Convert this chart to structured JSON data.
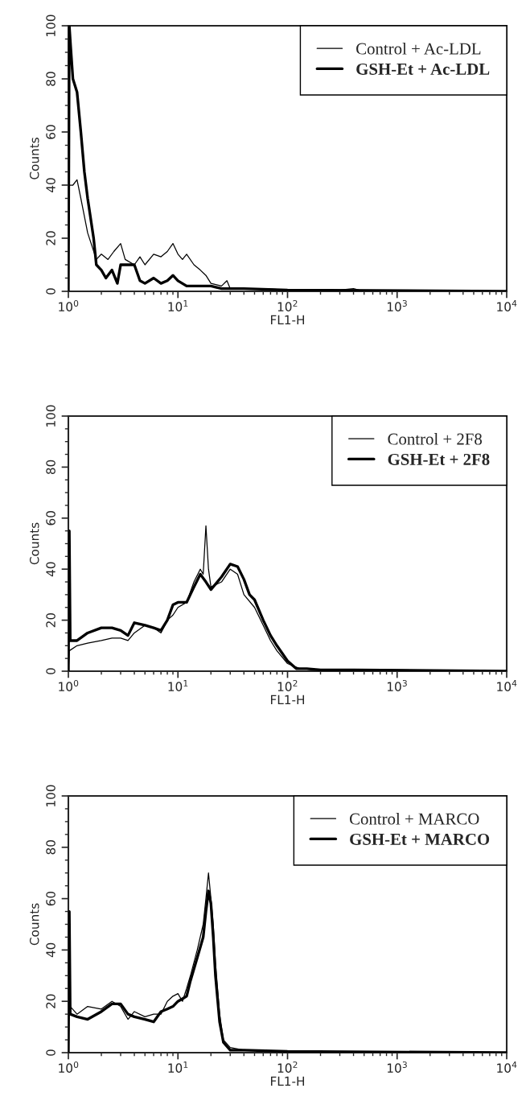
{
  "chart_data": [
    {
      "type": "line",
      "xlabel": "FL1-H",
      "ylabel": "Counts",
      "log": "x",
      "legend": "top right",
      "xlim": [
        1,
        10000
      ],
      "ylim": [
        0,
        100
      ],
      "xticks": [
        {
          "value": 1,
          "label": "10$^{0}$"
        },
        {
          "value": 10,
          "label": "10$^{1}$"
        },
        {
          "value": 100,
          "label": "10$^{2}$"
        },
        {
          "value": 1000,
          "label": "10$^{3}$"
        },
        {
          "value": 10000,
          "label": "10$^{4}$"
        }
      ],
      "yticks": [
        0,
        20,
        40,
        60,
        80,
        100
      ],
      "series": [
        {
          "name": "Control + Ac-LDL",
          "color": "#000000",
          "x": [
            1.0,
            1.02,
            1.1,
            1.2,
            1.3,
            1.5,
            1.8,
            2.0,
            2.3,
            2.6,
            3.0,
            3.3,
            4,
            4.5,
            5,
            6,
            7,
            8,
            9,
            10,
            11,
            12,
            14,
            16,
            18,
            20,
            25,
            28,
            30,
            40,
            60,
            100,
            200,
            300,
            400,
            500,
            10000
          ],
          "values": [
            0,
            40,
            40,
            42,
            35,
            22,
            12,
            14,
            12,
            15,
            18,
            12,
            10,
            13,
            10,
            14,
            13,
            15,
            18,
            14,
            12,
            14,
            10,
            8,
            6,
            3,
            2,
            4,
            1,
            1,
            1,
            0.5,
            0.5,
            0.5,
            1,
            0,
            0
          ]
        },
        {
          "name": "GSH-Et + Ac-LDL",
          "color": "#000000",
          "x": [
            1.0,
            1.02,
            1.05,
            1.1,
            1.2,
            1.3,
            1.4,
            1.5,
            1.7,
            1.8,
            2.0,
            2.2,
            2.5,
            2.8,
            3,
            3.5,
            4,
            4.5,
            5,
            6,
            7,
            8,
            9,
            10,
            12,
            15,
            20,
            25,
            40,
            100,
            10000
          ],
          "values": [
            0,
            100,
            92,
            80,
            75,
            60,
            45,
            35,
            20,
            10,
            8,
            5,
            8,
            3,
            10,
            10,
            10,
            4,
            3,
            5,
            3,
            4,
            6,
            4,
            2,
            2,
            2,
            1,
            1,
            0.5,
            0
          ]
        }
      ]
    },
    {
      "type": "line",
      "xlabel": "FL1-H",
      "ylabel": "Counts",
      "log": "x",
      "legend": "top right",
      "xlim": [
        1,
        10000
      ],
      "ylim": [
        0,
        100
      ],
      "xticks": [
        {
          "value": 1,
          "label": "10$^{0}$"
        },
        {
          "value": 10,
          "label": "10$^{1}$"
        },
        {
          "value": 100,
          "label": "10$^{2}$"
        },
        {
          "value": 1000,
          "label": "10$^{3}$"
        },
        {
          "value": 10000,
          "label": "10$^{4}$"
        }
      ],
      "yticks": [
        0,
        20,
        40,
        60,
        80,
        100
      ],
      "series": [
        {
          "name": "Control + 2F8",
          "color": "#000000",
          "x": [
            1,
            1.02,
            1.2,
            1.5,
            2,
            2.5,
            3,
            3.5,
            4,
            5,
            6,
            7,
            8,
            9,
            10,
            12,
            14,
            16,
            17,
            18,
            19,
            20,
            25,
            30,
            35,
            40,
            50,
            60,
            70,
            80,
            100,
            130,
            200,
            1000,
            10000
          ],
          "values": [
            0,
            8,
            10,
            11,
            12,
            13,
            13,
            12,
            15,
            18,
            17,
            15,
            20,
            22,
            25,
            27,
            35,
            40,
            38,
            57,
            40,
            33,
            35,
            40,
            38,
            30,
            25,
            18,
            12,
            8,
            3,
            1,
            0.5,
            0.5,
            0
          ]
        },
        {
          "name": "GSH-Et + 2F8",
          "color": "#000000",
          "x": [
            1,
            1.02,
            1.04,
            1.2,
            1.5,
            2,
            2.5,
            3,
            3.5,
            4,
            5,
            6,
            7,
            8,
            9,
            10,
            12,
            14,
            16,
            18,
            20,
            25,
            30,
            35,
            40,
            45,
            50,
            60,
            70,
            80,
            100,
            120,
            150,
            200,
            400,
            10000
          ],
          "values": [
            0,
            55,
            12,
            12,
            15,
            17,
            17,
            16,
            14,
            19,
            18,
            17,
            16,
            20,
            26,
            27,
            27,
            33,
            38,
            35,
            32,
            37,
            42,
            41,
            36,
            30,
            28,
            20,
            14,
            10,
            4,
            1,
            1,
            0.5,
            0.5,
            0
          ]
        }
      ]
    },
    {
      "type": "line",
      "xlabel": "FL1-H",
      "ylabel": "Counts",
      "log": "x",
      "legend": "top right",
      "xlim": [
        1,
        10000
      ],
      "ylim": [
        0,
        100
      ],
      "xticks": [
        {
          "value": 1,
          "label": "10$^{0}$"
        },
        {
          "value": 10,
          "label": "10$^{1}$"
        },
        {
          "value": 100,
          "label": "10$^{2}$"
        },
        {
          "value": 1000,
          "label": "10$^{3}$"
        },
        {
          "value": 10000,
          "label": "10$^{4}$"
        }
      ],
      "yticks": [
        0,
        20,
        40,
        60,
        80,
        100
      ],
      "series": [
        {
          "name": "Control + MARCO",
          "color": "#000000",
          "x": [
            1,
            1.02,
            1.04,
            1.2,
            1.5,
            2,
            2.5,
            3,
            3.5,
            4,
            5,
            6,
            7,
            8,
            9,
            10,
            11,
            12,
            13,
            15,
            17,
            18,
            19,
            20,
            21,
            22,
            24,
            26,
            30,
            40,
            100,
            140,
            10000
          ],
          "values": [
            0,
            55,
            18,
            15,
            18,
            17,
            20,
            18,
            13,
            16,
            14,
            15,
            15,
            20,
            22,
            23,
            20,
            25,
            30,
            40,
            50,
            60,
            70,
            60,
            50,
            35,
            15,
            5,
            2,
            1,
            0.5,
            0.5,
            0
          ]
        },
        {
          "name": "GSH-Et + MARCO",
          "color": "#000000",
          "x": [
            1,
            1.02,
            1.04,
            1.2,
            1.5,
            2,
            2.5,
            3,
            3.5,
            4,
            5,
            6,
            7,
            8,
            9,
            10,
            11,
            12,
            13,
            15,
            17,
            18,
            19,
            20,
            21,
            22,
            24,
            26,
            30,
            40,
            100,
            10000
          ],
          "values": [
            0,
            55,
            15,
            14,
            13,
            16,
            19,
            19,
            15,
            14,
            13,
            12,
            16,
            17,
            18,
            20,
            21,
            22,
            28,
            37,
            45,
            55,
            63,
            58,
            45,
            30,
            12,
            4,
            1,
            1,
            0.5,
            0
          ]
        }
      ]
    }
  ]
}
